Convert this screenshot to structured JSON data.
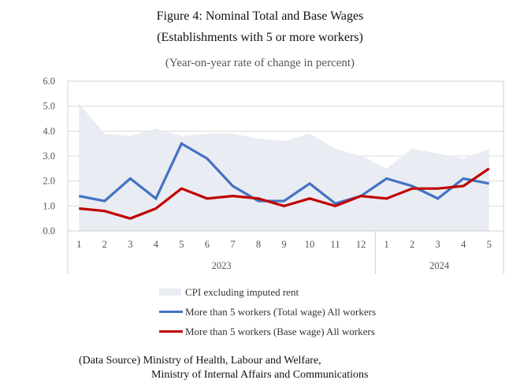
{
  "chart_data": {
    "type": "line",
    "title": "Figure 4: Nominal Total and Base Wages",
    "subtitle": "(Establishments with 5 or more workers)",
    "unit_label": "(Year-on-year rate of change in percent)",
    "xlabel": "",
    "ylabel": "",
    "ylim": [
      0.0,
      6.0
    ],
    "yticks": [
      "0.0",
      "1.0",
      "2.0",
      "3.0",
      "4.0",
      "5.0",
      "6.0"
    ],
    "grid": true,
    "categories": [
      "1",
      "2",
      "3",
      "4",
      "5",
      "6",
      "7",
      "8",
      "9",
      "10",
      "11",
      "12",
      "1",
      "2",
      "3",
      "4",
      "5"
    ],
    "year_groups": [
      {
        "label": "2023",
        "count": 12
      },
      {
        "label": "2024",
        "count": 5
      }
    ],
    "series": [
      {
        "name": "CPI excluding imputed rent",
        "kind": "area",
        "color": "#e9ecf2",
        "values": [
          5.1,
          3.9,
          3.8,
          4.1,
          3.8,
          3.9,
          3.9,
          3.7,
          3.6,
          3.9,
          3.3,
          3.0,
          2.5,
          3.3,
          3.1,
          2.9,
          3.3
        ]
      },
      {
        "name": "More than 5 workers (Total wage) All workers",
        "kind": "line",
        "color": "#4472c4",
        "values": [
          1.4,
          1.2,
          2.1,
          1.3,
          3.5,
          2.9,
          1.8,
          1.2,
          1.2,
          1.9,
          1.1,
          1.4,
          2.1,
          1.8,
          1.3,
          2.1,
          1.9
        ]
      },
      {
        "name": "More than 5 workers (Base wage) All workers",
        "kind": "line",
        "color": "#c00000",
        "values": [
          0.9,
          0.8,
          0.5,
          0.9,
          1.7,
          1.3,
          1.4,
          1.3,
          1.0,
          1.3,
          1.0,
          1.4,
          1.3,
          1.7,
          1.7,
          1.8,
          2.5
        ]
      }
    ],
    "legend_position": "bottom"
  },
  "source": {
    "line1": "(Data Source) Ministry of Health, Labour and Welfare,",
    "line2": "Ministry of Internal Affairs and Communications"
  }
}
